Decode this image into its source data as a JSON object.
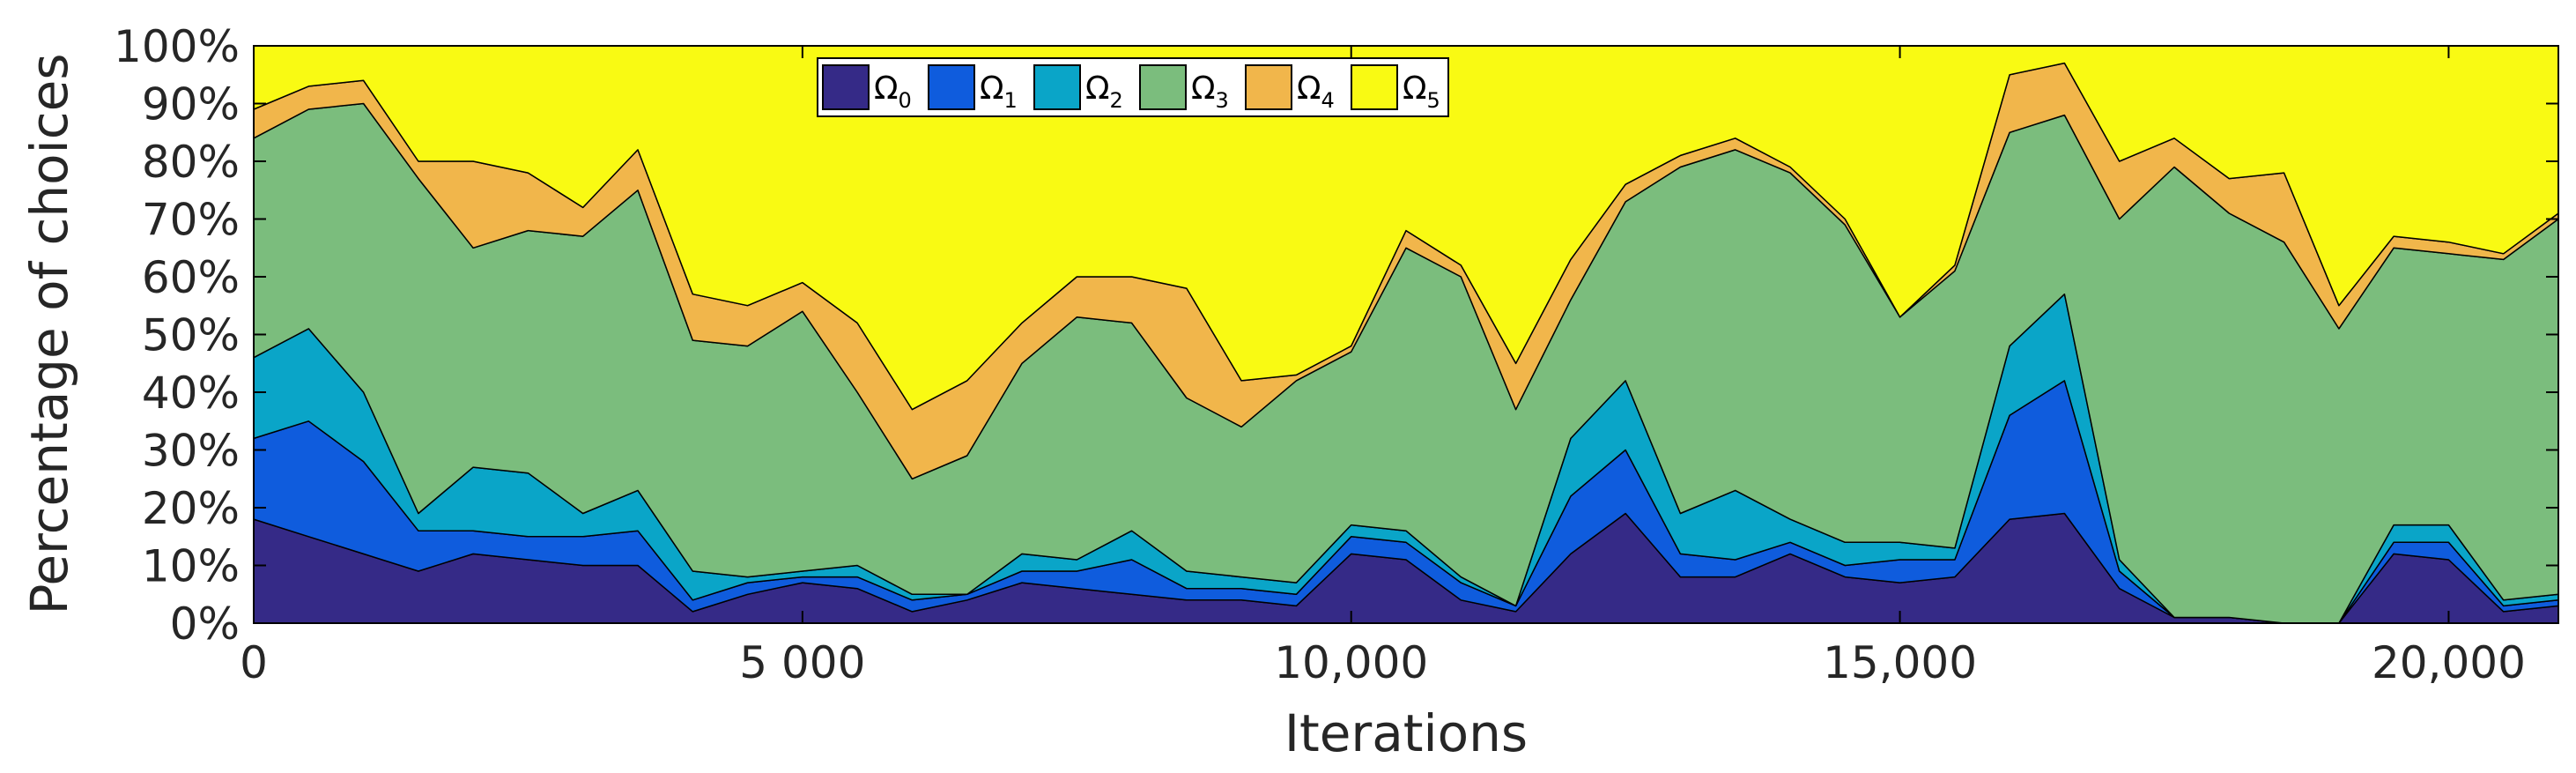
{
  "chart_data": {
    "type": "area",
    "stacked": true,
    "title": "",
    "xlabel": "Iterations",
    "ylabel": "Percentage of choices",
    "xlim": [
      0,
      21000
    ],
    "ylim": [
      0,
      100
    ],
    "x_ticks": [
      0,
      5000,
      10000,
      15000,
      20000
    ],
    "x_tick_labels": [
      "0",
      "5 000",
      "10,000",
      "15,000",
      "20,000"
    ],
    "y_ticks": [
      0,
      10,
      20,
      30,
      40,
      50,
      60,
      70,
      80,
      90,
      100
    ],
    "y_tick_labels": [
      "0%",
      "10%",
      "20%",
      "30%",
      "40%",
      "50%",
      "60%",
      "70%",
      "80%",
      "90%",
      "100%"
    ],
    "grid": false,
    "legend_position": "top-center",
    "x": [
      0,
      500,
      1000,
      1500,
      2000,
      2500,
      3000,
      3500,
      4000,
      4500,
      5000,
      5500,
      6000,
      6500,
      7000,
      7500,
      8000,
      8500,
      9000,
      9500,
      10000,
      10500,
      11000,
      11500,
      12000,
      12500,
      13000,
      13500,
      14000,
      14500,
      15000,
      15500,
      16000,
      16500,
      17000,
      17500,
      18000,
      18500,
      19000,
      19500,
      20000,
      20500,
      21000
    ],
    "series": [
      {
        "name": "Ω0",
        "legend_base": "Ω",
        "legend_sub": "0",
        "color": "#352a87",
        "values": [
          18,
          15,
          12,
          9,
          12,
          11,
          10,
          10,
          2,
          5,
          7,
          6,
          2,
          4,
          7,
          6,
          5,
          4,
          4,
          3,
          12,
          11,
          4,
          2,
          12,
          19,
          8,
          8,
          12,
          8,
          7,
          8,
          18,
          19,
          6,
          1,
          1,
          0,
          0,
          12,
          11,
          2,
          3
        ]
      },
      {
        "name": "Ω1",
        "legend_base": "Ω",
        "legend_sub": "1",
        "color": "#0f5cdd",
        "values": [
          14,
          20,
          16,
          7,
          4,
          4,
          5,
          6,
          2,
          2,
          1,
          2,
          2,
          1,
          2,
          3,
          6,
          2,
          2,
          2,
          3,
          3,
          3,
          1,
          10,
          11,
          4,
          3,
          2,
          2,
          4,
          3,
          18,
          23,
          3,
          0,
          0,
          0,
          0,
          2,
          3,
          1,
          1
        ]
      },
      {
        "name": "Ω2",
        "legend_base": "Ω",
        "legend_sub": "2",
        "color": "#0aa5c8",
        "values": [
          14,
          16,
          12,
          3,
          11,
          11,
          4,
          7,
          5,
          1,
          1,
          2,
          1,
          0,
          3,
          2,
          5,
          3,
          2,
          2,
          2,
          2,
          1,
          0,
          10,
          12,
          7,
          12,
          4,
          4,
          3,
          2,
          12,
          15,
          2,
          0,
          0,
          0,
          0,
          3,
          3,
          1,
          1
        ]
      },
      {
        "name": "Ω3",
        "legend_base": "Ω",
        "legend_sub": "3",
        "color": "#7bbd7d",
        "values": [
          38,
          38,
          50,
          58,
          38,
          42,
          48,
          52,
          40,
          40,
          45,
          30,
          20,
          24,
          33,
          42,
          36,
          30,
          26,
          35,
          30,
          49,
          52,
          34,
          24,
          31,
          60,
          59,
          60,
          55,
          39,
          48,
          37,
          31,
          59,
          78,
          70,
          66,
          51,
          48,
          47,
          59,
          65
        ]
      },
      {
        "name": "Ω4",
        "legend_base": "Ω",
        "legend_sub": "4",
        "color": "#f1b64b",
        "values": [
          5,
          4,
          4,
          3,
          15,
          10,
          5,
          7,
          8,
          7,
          5,
          12,
          12,
          13,
          7,
          7,
          8,
          19,
          8,
          1,
          1,
          3,
          2,
          8,
          7,
          3,
          2,
          2,
          1,
          1,
          0,
          1,
          10,
          9,
          10,
          5,
          6,
          12,
          4,
          2,
          2,
          1,
          1
        ]
      },
      {
        "name": "Ω5",
        "legend_base": "Ω",
        "legend_sub": "5",
        "color": "#f9fa13",
        "values": [
          11,
          7,
          6,
          20,
          20,
          22,
          28,
          18,
          43,
          45,
          41,
          48,
          63,
          58,
          48,
          40,
          40,
          42,
          58,
          57,
          52,
          32,
          38,
          55,
          37,
          24,
          19,
          16,
          21,
          30,
          47,
          38,
          5,
          3,
          20,
          16,
          23,
          22,
          45,
          33,
          34,
          36,
          29
        ]
      }
    ]
  }
}
